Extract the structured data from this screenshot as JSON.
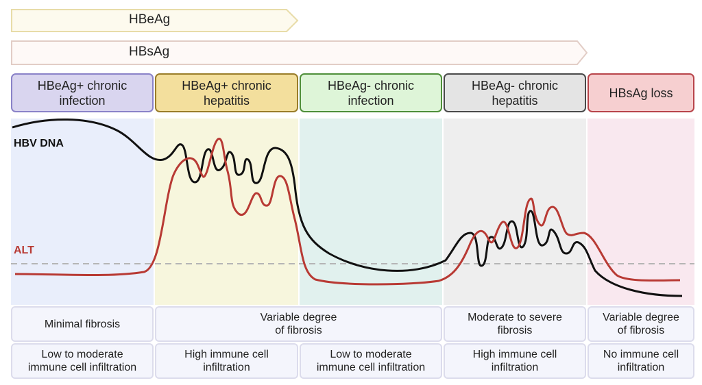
{
  "markers": {
    "hbeag": {
      "label": "HBeAg",
      "color": "#e8dca8",
      "fill": "#fdfaee"
    },
    "hbsag": {
      "label": "HBsAg",
      "color": "#e2cdc6",
      "fill": "#fef9f7"
    }
  },
  "phases": [
    {
      "label": "HBeAg+ chronic\ninfection",
      "border": "#8a82c8",
      "fill": "#d9d5ef",
      "band": "#e9eefb"
    },
    {
      "label": "HBeAg+ chronic\nhepatitis",
      "border": "#9a7d2a",
      "fill": "#f3df9d",
      "band": "#f7f6dd"
    },
    {
      "label": "HBeAg- chronic\ninfection",
      "border": "#4f8f3a",
      "fill": "#def5d8",
      "band": "#e1f1ee"
    },
    {
      "label": "HBeAg- chronic\nhepatitis",
      "border": "#4a4a4a",
      "fill": "#e4e4e4",
      "band": "#eeeeee"
    },
    {
      "label": "HBsAg loss",
      "border": "#b8444a",
      "fill": "#f6cfd0",
      "band": "#f9e8ef"
    }
  ],
  "curves": {
    "hbv_dna": {
      "label": "HBV DNA",
      "color": "#111111"
    },
    "alt": {
      "label": "ALT",
      "color": "#b83a34"
    },
    "threshold_color": "#b5b5b5"
  },
  "fibrosis_row": [
    {
      "label": "Minimal fibrosis"
    },
    {
      "label": "Variable degree\nof fibrosis"
    },
    {
      "label": "Moderate to severe\nfibrosis"
    },
    {
      "label": "Variable degree\nof fibrosis"
    }
  ],
  "infiltration_row": [
    {
      "label": "Low to moderate\nimmune cell infiltration"
    },
    {
      "label": "High immune cell\ninfiltration"
    },
    {
      "label": "Low to moderate\nimmune cell infiltration"
    },
    {
      "label": "High immune cell\ninfiltration"
    },
    {
      "label": "No immune cell\ninfiltration"
    }
  ]
}
